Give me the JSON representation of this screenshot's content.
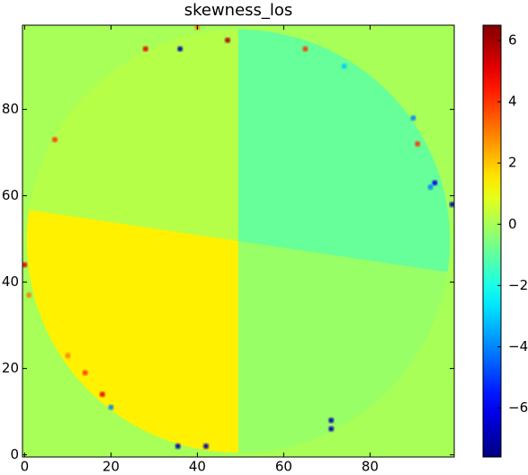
{
  "chart_data": {
    "type": "heatmap",
    "title": "skewness_los",
    "xlim": [
      -0.5,
      99.5
    ],
    "ylim": [
      99.5,
      -0.5
    ],
    "xticks": [
      0,
      20,
      40,
      60,
      80
    ],
    "yticks": [
      0,
      20,
      40,
      60,
      80
    ],
    "colormap": "jet",
    "clim": [
      -7.6,
      6.5
    ],
    "colorbar_ticks": [
      {
        "value": -6,
        "label": "−6"
      },
      {
        "value": -4,
        "label": "−4"
      },
      {
        "value": -2,
        "label": "−2"
      },
      0,
      2,
      4,
      6
    ],
    "disc": {
      "center": [
        49.5,
        49.5
      ],
      "radius": 49,
      "outside_value": 0,
      "quadrant_values": {
        "upper_left": 0.2,
        "upper_right": -0.9,
        "lower_right": -0.2,
        "lower_left": 1.4
      }
    },
    "spots": [
      {
        "x": 35.5,
        "y": 2,
        "value": -7
      },
      {
        "x": 42,
        "y": 2,
        "value": -7
      },
      {
        "x": 71,
        "y": 6,
        "value": -7
      },
      {
        "x": 71,
        "y": 8,
        "value": -7
      },
      {
        "x": 20,
        "y": 11,
        "value": -4
      },
      {
        "x": 18,
        "y": 14,
        "value": 5
      },
      {
        "x": 14,
        "y": 19,
        "value": 4
      },
      {
        "x": 10,
        "y": 23,
        "value": 3
      },
      {
        "x": 1,
        "y": 37,
        "value": 3
      },
      {
        "x": 0,
        "y": 44,
        "value": 5
      },
      {
        "x": 99,
        "y": 58,
        "value": -7
      },
      {
        "x": 95,
        "y": 63,
        "value": -6
      },
      {
        "x": 94,
        "y": 62,
        "value": -4
      },
      {
        "x": 7,
        "y": 73,
        "value": 4
      },
      {
        "x": 28,
        "y": 94,
        "value": 5
      },
      {
        "x": 36,
        "y": 94,
        "value": -7
      },
      {
        "x": 47,
        "y": 96,
        "value": 6
      },
      {
        "x": 65,
        "y": 94,
        "value": 4
      },
      {
        "x": 40,
        "y": 99,
        "value": 3
      },
      {
        "x": 90,
        "y": 78,
        "value": -4
      },
      {
        "x": 91,
        "y": 72,
        "value": 4
      },
      {
        "x": 74,
        "y": 90,
        "value": -3
      }
    ]
  }
}
